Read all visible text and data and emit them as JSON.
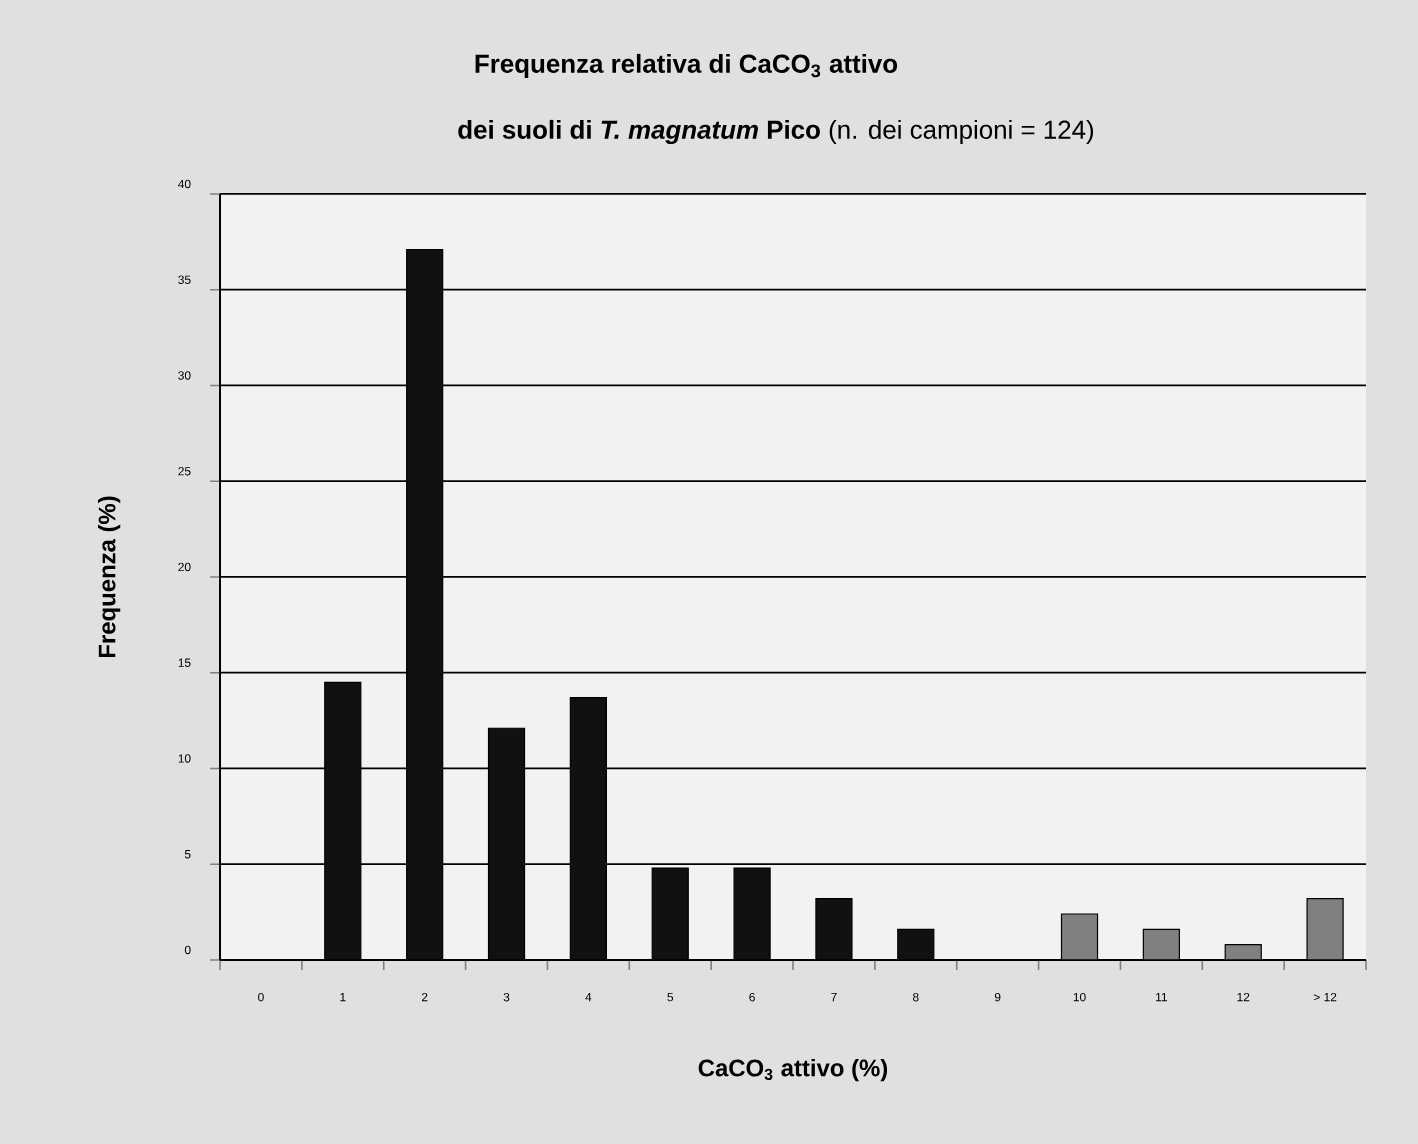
{
  "chart_data": {
    "type": "bar",
    "title": "Frequenza relativa di CaCO$_{3}$ attivo",
    "subtitle": "**dei suoli di *T. magnatum* Pico** (n. dei campioni = 124)",
    "xlabel": "CaCO$_{3}$ attivo  (%)",
    "ylabel": "Frequenza (%)",
    "categories": [
      "0",
      "1",
      "2",
      "3",
      "4",
      "5",
      "6",
      "7",
      "8",
      "9",
      "10",
      "11",
      "12",
      "> 12"
    ],
    "values": [
      0,
      14.5,
      37.1,
      12.1,
      13.7,
      4.8,
      4.8,
      3.2,
      1.6,
      0,
      2.4,
      1.6,
      0.8,
      3.2
    ],
    "colors": [
      "#111111",
      "#111111",
      "#111111",
      "#111111",
      "#111111",
      "#111111",
      "#111111",
      "#111111",
      "#111111",
      "#111111",
      "#808080",
      "#808080",
      "#808080",
      "#808080"
    ],
    "ylim": [
      0,
      40
    ],
    "yticks": [
      0,
      5,
      10,
      15,
      20,
      25,
      30,
      35,
      40
    ],
    "grid": "y"
  }
}
